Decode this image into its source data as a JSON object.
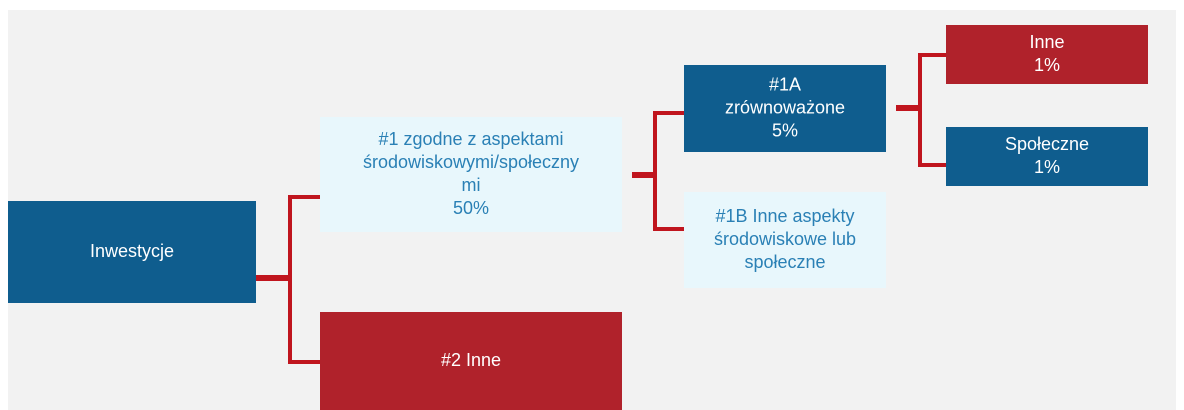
{
  "nodes": [
    {
      "lines": [
        "Inwestycje"
      ]
    },
    {
      "lines": [
        "#1 zgodne z aspektami",
        "środowiskowymi/społeczny",
        "mi",
        "50%"
      ]
    },
    {
      "lines": [
        "#2 Inne"
      ]
    },
    {
      "lines": [
        "#1A",
        "zrównoważone",
        "5%"
      ]
    },
    {
      "lines": [
        "#1B Inne aspekty",
        "środowiskowe lub",
        "społeczne"
      ]
    },
    {
      "lines": [
        "Inne",
        "1%"
      ]
    },
    {
      "lines": [
        "Społeczne",
        "1%"
      ]
    }
  ]
}
